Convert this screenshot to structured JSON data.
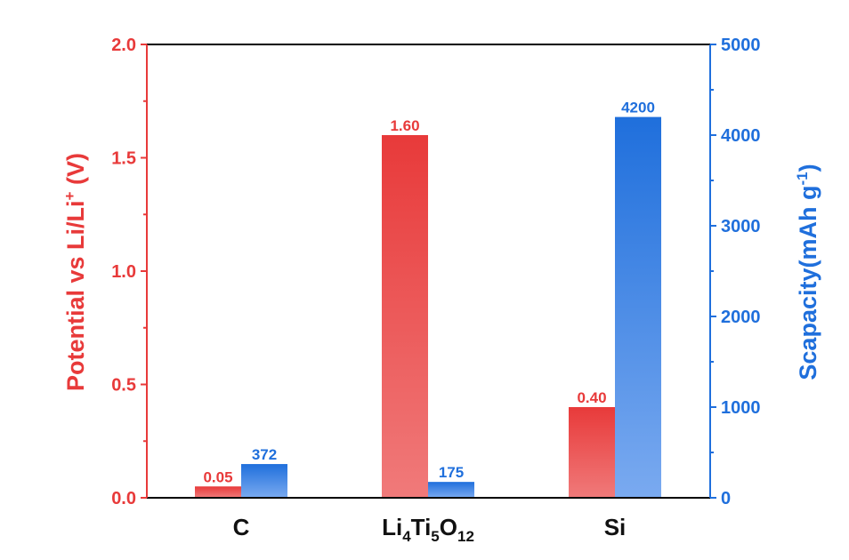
{
  "chart_data": {
    "type": "bar",
    "categories": [
      "C",
      "Li4Ti5O12",
      "Si"
    ],
    "category_display": [
      [
        {
          "t": "C",
          "sub": false
        }
      ],
      [
        {
          "t": "Li",
          "sub": false
        },
        {
          "t": "4",
          "sub": true
        },
        {
          "t": "Ti",
          "sub": false
        },
        {
          "t": "5",
          "sub": true
        },
        {
          "t": "O",
          "sub": false
        },
        {
          "t": "12",
          "sub": true
        }
      ],
      [
        {
          "t": "Si",
          "sub": false
        }
      ]
    ],
    "series": [
      {
        "axis": "left",
        "values": [
          0.05,
          1.6,
          0.4
        ],
        "data_labels": [
          "0.05",
          "1.60",
          "0.40"
        ],
        "color_top": "#e83a3a",
        "color_bottom": "#f07a7a"
      },
      {
        "axis": "right",
        "values": [
          372,
          175,
          4200
        ],
        "data_labels": [
          "372",
          "175",
          "4200"
        ],
        "color_top": "#1f6fdc",
        "color_bottom": "#7aaaf0"
      }
    ],
    "y_left": {
      "label_parts": [
        {
          "t": "Potential vs Li/Li",
          "sup": false
        },
        {
          "t": "+",
          "sup": true
        },
        {
          "t": " (V)",
          "sup": false
        }
      ],
      "lim": [
        0,
        2.0
      ],
      "ticks": [
        "0.0",
        "0.5",
        "1.0",
        "1.5",
        "2.0"
      ],
      "tick_values": [
        0,
        0.5,
        1.0,
        1.5,
        2.0
      ],
      "color": "#e83a3a"
    },
    "y_right": {
      "label_parts": [
        {
          "t": "Scapacity(mAh g",
          "sup": false
        },
        {
          "t": "-1",
          "sup": true
        },
        {
          "t": ")",
          "sup": false
        }
      ],
      "lim": [
        0,
        5000
      ],
      "ticks": [
        "0",
        "1000",
        "2000",
        "3000",
        "4000",
        "5000"
      ],
      "tick_values": [
        0,
        1000,
        2000,
        3000,
        4000,
        5000
      ],
      "color": "#1f6fdc"
    },
    "grid": false,
    "legend": "none"
  }
}
